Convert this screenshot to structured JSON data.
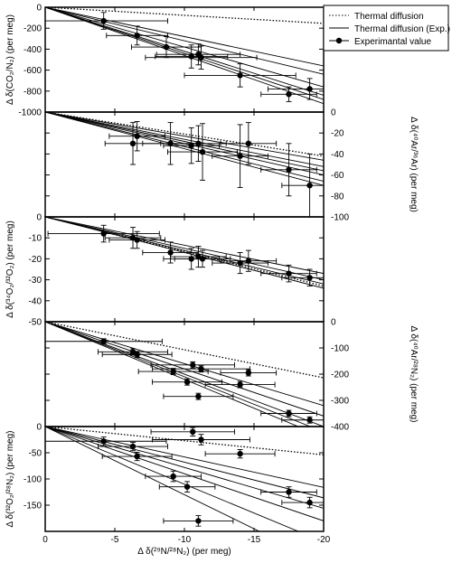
{
  "legend": {
    "items": [
      {
        "label": "Thermal diffusion",
        "style": "dotted"
      },
      {
        "label": "Thermal diffusion (Exp.)",
        "style": "solid"
      },
      {
        "label": "Experimantal value",
        "style": "marker"
      }
    ]
  },
  "chart_data": [
    {
      "type": "scatter",
      "ylabel": "Δ δ(CO₂/N₂) (per meg)",
      "ylabel_side": "left",
      "ylim": [
        0,
        -1000
      ],
      "yticks": [
        {
          "v": 0,
          "t": "0"
        },
        {
          "v": -200,
          "t": "-200"
        },
        {
          "v": -400,
          "t": "-400"
        },
        {
          "v": -600,
          "t": "-600"
        },
        {
          "v": -800,
          "t": "-800"
        },
        {
          "v": -1000,
          "t": "-1000"
        }
      ],
      "thermal_slope": 7.7,
      "exp_slopes": [
        28,
        32,
        38,
        42,
        44,
        46
      ],
      "points": [
        {
          "x": -4.2,
          "y": -130,
          "xe": 4.6,
          "ye": 80
        },
        {
          "x": -6.6,
          "y": -270,
          "xe": 2.2,
          "ye": 90
        },
        {
          "x": -8.7,
          "y": -380,
          "xe": 2.5,
          "ye": 100
        },
        {
          "x": -10.5,
          "y": -470,
          "xe": 2.6,
          "ye": 110
        },
        {
          "x": -11.0,
          "y": -450,
          "xe": 3.0,
          "ye": 100
        },
        {
          "x": -11.2,
          "y": -480,
          "xe": 4.0,
          "ye": 110
        },
        {
          "x": -14.0,
          "y": -650,
          "xe": 4.0,
          "ye": 110
        },
        {
          "x": -17.5,
          "y": -830,
          "xe": 2.0,
          "ye": 70
        },
        {
          "x": -19.0,
          "y": -780,
          "xe": 3.0,
          "ye": 100
        }
      ]
    },
    {
      "type": "scatter",
      "ylabel": "Δ δ(⁴⁰Ar/³⁶Ar) (per meg)",
      "ylabel_side": "right",
      "ylim": [
        0,
        -100
      ],
      "yticks": [
        {
          "v": 0,
          "t": "0"
        },
        {
          "v": -20,
          "t": "-20"
        },
        {
          "v": -40,
          "t": "-40"
        },
        {
          "v": -60,
          "t": "-60"
        },
        {
          "v": -80,
          "t": "-80"
        },
        {
          "v": -100,
          "t": "-100"
        }
      ],
      "thermal_slope": 2.1,
      "exp_slopes": [
        2.3,
        2.6,
        2.8,
        3.0,
        3.3,
        3.5
      ],
      "points": [
        {
          "x": -6.3,
          "y": -30,
          "xe": 2.0,
          "ye": 20
        },
        {
          "x": -6.6,
          "y": -23,
          "xe": 2.0,
          "ye": 14
        },
        {
          "x": -9.0,
          "y": -30,
          "xe": 2.0,
          "ye": 20
        },
        {
          "x": -10.5,
          "y": -32,
          "xe": 2.0,
          "ye": 17
        },
        {
          "x": -11.0,
          "y": -30,
          "xe": 2.0,
          "ye": 17
        },
        {
          "x": -11.3,
          "y": -38,
          "xe": 2.5,
          "ye": 27
        },
        {
          "x": -14.0,
          "y": -42,
          "xe": 2.0,
          "ye": 30
        },
        {
          "x": -14.6,
          "y": -30,
          "xe": 2.0,
          "ye": 20
        },
        {
          "x": -17.5,
          "y": -55,
          "xe": 2.0,
          "ye": 25
        },
        {
          "x": -19.0,
          "y": -70,
          "xe": 2.0,
          "ye": 30
        }
      ]
    },
    {
      "type": "scatter",
      "ylabel": "Δ δ(³⁴O₂/³²O₂) (per meg)",
      "ylabel_side": "left",
      "ylim": [
        0,
        -50
      ],
      "yticks": [
        {
          "v": 0,
          "t": "0"
        },
        {
          "v": -10,
          "t": "-10"
        },
        {
          "v": -20,
          "t": "-20"
        },
        {
          "v": -30,
          "t": "-30"
        },
        {
          "v": -40,
          "t": "-40"
        },
        {
          "v": -50,
          "t": "-50"
        }
      ],
      "thermal_slope": 1.65,
      "exp_slopes": [
        1.35,
        1.5,
        1.6,
        1.7
      ],
      "points": [
        {
          "x": -4.2,
          "y": -8,
          "xe": 4.0,
          "ye": 4
        },
        {
          "x": -6.3,
          "y": -10,
          "xe": 2.0,
          "ye": 5
        },
        {
          "x": -6.6,
          "y": -11,
          "xe": 2.0,
          "ye": 4
        },
        {
          "x": -9.0,
          "y": -17,
          "xe": 2.0,
          "ye": 5
        },
        {
          "x": -10.5,
          "y": -20,
          "xe": 2.0,
          "ye": 5
        },
        {
          "x": -11.0,
          "y": -19,
          "xe": 2.0,
          "ye": 5
        },
        {
          "x": -11.3,
          "y": -20,
          "xe": 2.0,
          "ye": 4
        },
        {
          "x": -14.0,
          "y": -22,
          "xe": 2.0,
          "ye": 5
        },
        {
          "x": -14.6,
          "y": -21,
          "xe": 2.0,
          "ye": 5
        },
        {
          "x": -17.5,
          "y": -27,
          "xe": 2.0,
          "ye": 4
        },
        {
          "x": -19.0,
          "y": -29,
          "xe": 2.0,
          "ye": 4
        }
      ]
    },
    {
      "type": "scatter",
      "ylabel": "Δ δ(⁴⁰Ar/²⁸N₂) (per meg)",
      "ylabel_side": "right",
      "ylim": [
        0,
        -400
      ],
      "yticks": [
        {
          "v": 0,
          "t": "0"
        },
        {
          "v": -100,
          "t": "-100"
        },
        {
          "v": -200,
          "t": "-200"
        },
        {
          "v": -300,
          "t": "-300"
        },
        {
          "v": -400,
          "t": "-400"
        }
      ],
      "thermal_slope": 10.7,
      "exp_slopes": [
        16,
        18,
        20,
        21,
        22
      ],
      "points": [
        {
          "x": -4.2,
          "y": -75,
          "xe": 4.2,
          "ye": 10
        },
        {
          "x": -6.3,
          "y": -115,
          "xe": 2.5,
          "ye": 12
        },
        {
          "x": -6.6,
          "y": -125,
          "xe": 2.5,
          "ye": 12
        },
        {
          "x": -9.2,
          "y": -190,
          "xe": 2.5,
          "ye": 12
        },
        {
          "x": -10.2,
          "y": -230,
          "xe": 2.5,
          "ye": 12
        },
        {
          "x": -10.6,
          "y": -165,
          "xe": 3.0,
          "ye": 12
        },
        {
          "x": -11.0,
          "y": -285,
          "xe": 2.5,
          "ye": 12
        },
        {
          "x": -11.2,
          "y": -180,
          "xe": 3.5,
          "ye": 12
        },
        {
          "x": -14.0,
          "y": -240,
          "xe": 2.5,
          "ye": 12
        },
        {
          "x": -14.6,
          "y": -195,
          "xe": 2.0,
          "ye": 12
        },
        {
          "x": -17.5,
          "y": -350,
          "xe": 2.0,
          "ye": 12
        },
        {
          "x": -19.0,
          "y": -375,
          "xe": 2.0,
          "ye": 12
        }
      ]
    },
    {
      "type": "scatter",
      "ylabel": "Δ δ(³²O₂/²⁸N₂) (per meg)",
      "ylabel_side": "left",
      "ylim": [
        0,
        -200
      ],
      "yticks": [
        {
          "v": 0,
          "t": "0"
        },
        {
          "v": -50,
          "t": "-50"
        },
        {
          "v": -100,
          "t": "-100"
        },
        {
          "v": -150,
          "t": "-150"
        }
      ],
      "thermal_slope": 2.7,
      "exp_slopes": [
        5.8,
        6.8,
        7.8,
        9.0,
        11.0,
        13.0
      ],
      "points": [
        {
          "x": -4.2,
          "y": -28,
          "xe": 4.5,
          "ye": 8
        },
        {
          "x": -6.3,
          "y": -38,
          "xe": 2.5,
          "ye": 8
        },
        {
          "x": -6.6,
          "y": -57,
          "xe": 2.5,
          "ye": 8
        },
        {
          "x": -9.2,
          "y": -95,
          "xe": 2.0,
          "ye": 10
        },
        {
          "x": -10.2,
          "y": -115,
          "xe": 2.0,
          "ye": 10
        },
        {
          "x": -10.6,
          "y": -10,
          "xe": 3.0,
          "ye": 8
        },
        {
          "x": -11.0,
          "y": -180,
          "xe": 2.5,
          "ye": 10
        },
        {
          "x": -11.2,
          "y": -25,
          "xe": 3.5,
          "ye": 10
        },
        {
          "x": -14.0,
          "y": -52,
          "xe": 2.5,
          "ye": 8
        },
        {
          "x": -17.5,
          "y": -125,
          "xe": 2.0,
          "ye": 10
        },
        {
          "x": -19.0,
          "y": -145,
          "xe": 2.0,
          "ye": 10
        }
      ]
    }
  ],
  "x_axis": {
    "label": "Δ δ(²⁹N/²⁸N₂) (per meg)",
    "xlim": [
      0,
      -20
    ],
    "ticks": [
      {
        "v": 0,
        "t": "0"
      },
      {
        "v": -5,
        "t": "-5"
      },
      {
        "v": -10,
        "t": "-10"
      },
      {
        "v": -15,
        "t": "-15"
      },
      {
        "v": -20,
        "t": "-20"
      }
    ]
  }
}
